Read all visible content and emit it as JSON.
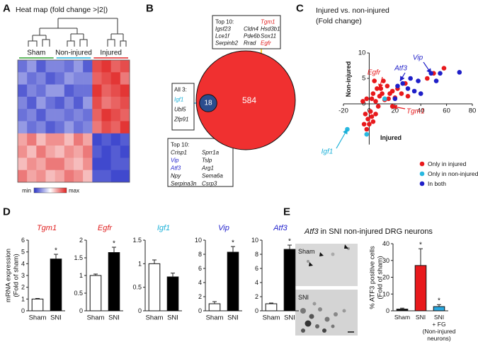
{
  "chart_data": [
    {
      "type": "heatmap",
      "panel": "A",
      "title": "Heat map (fold change >|2|)",
      "groups": [
        {
          "name": "Sham",
          "color": "#2ca02c",
          "columns": 4
        },
        {
          "name": "Non-injured",
          "color": "#1ab0d8",
          "columns": 4
        },
        {
          "name": "Injured",
          "color": "#e02020",
          "columns": 4
        }
      ],
      "colors": [
        "#2b35c8",
        "#ffffff",
        "#e0201f"
      ],
      "colorbar_labels": [
        "min",
        "max"
      ],
      "values": [
        [
          -0.7,
          -0.5,
          -0.8,
          -0.6,
          -0.6,
          -0.7,
          -0.5,
          -0.8,
          0.8,
          0.9,
          0.7,
          0.8
        ],
        [
          -0.5,
          -0.7,
          -0.6,
          -0.8,
          -0.7,
          -0.5,
          -0.6,
          -0.6,
          0.7,
          0.8,
          0.9,
          0.6
        ],
        [
          -0.8,
          -0.6,
          -0.7,
          -0.5,
          -0.5,
          -0.8,
          -0.7,
          -0.7,
          0.9,
          0.7,
          0.8,
          0.9
        ],
        [
          -0.6,
          -0.8,
          -0.5,
          -0.7,
          -0.8,
          -0.6,
          -0.8,
          -0.5,
          0.8,
          0.6,
          0.7,
          0.8
        ],
        [
          -0.7,
          -0.6,
          -0.8,
          -0.6,
          -0.6,
          -0.7,
          -0.6,
          -0.7,
          0.7,
          0.9,
          0.8,
          0.7
        ],
        [
          -0.5,
          -0.7,
          -0.6,
          -0.8,
          -0.7,
          -0.5,
          -0.7,
          -0.6,
          0.6,
          0.8,
          0.7,
          0.9
        ],
        [
          0.4,
          0.6,
          0.3,
          0.5,
          0.5,
          0.3,
          0.6,
          0.4,
          -0.9,
          -0.8,
          -0.9,
          -0.8
        ],
        [
          0.5,
          0.3,
          0.6,
          0.4,
          0.3,
          0.5,
          0.4,
          0.6,
          -0.8,
          -0.9,
          -0.8,
          -0.9
        ],
        [
          0.3,
          0.5,
          0.4,
          0.6,
          0.6,
          0.4,
          0.3,
          0.5,
          -0.9,
          -0.9,
          -0.8,
          -0.8
        ],
        [
          0.6,
          0.4,
          0.5,
          0.3,
          0.4,
          0.6,
          0.5,
          0.3,
          -0.8,
          -0.8,
          -0.9,
          -0.9
        ]
      ]
    },
    {
      "type": "venn",
      "panel": "B",
      "values": [
        584,
        18
      ],
      "colors": [
        "#f03030",
        "#2b4d8e"
      ],
      "boxes": [
        {
          "title": "Top 10:",
          "columns": [
            [
              "Igsf23",
              "Lce1f",
              "Serpinb2"
            ],
            [
              "Cldn4",
              "Pde6b",
              "Rrad"
            ],
            [
              "Tgm1",
              "Hsd3b1",
              "Sox11",
              "Egfr"
            ]
          ]
        },
        {
          "title": "All 3:",
          "columns": [
            [
              "Igf1",
              "Ubl5",
              "Zfp91"
            ]
          ]
        },
        {
          "title": "Top 10:",
          "columns": [
            [
              "Crisp1",
              "Vip",
              "Atf3",
              "Npy",
              "Serpina3n"
            ],
            [
              "Sprr1a",
              "Tslp",
              "Arg1",
              "Sema6a",
              "Csrp3"
            ]
          ]
        }
      ],
      "gene_colors": {
        "Tgm1": "#e02020",
        "Egfr": "#e02020",
        "Igf1": "#1ab0d8",
        "Vip": "#2222cc",
        "Atf3": "#2222cc"
      }
    },
    {
      "type": "scatter",
      "panel": "C",
      "title": "Injured vs. non-injured",
      "subtitle": "(Fold change)",
      "x_label": "Injured",
      "y_label": "Non-injured",
      "xlim": [
        -20,
        80
      ],
      "xticks": [
        -20,
        0,
        20,
        40,
        60,
        80
      ],
      "ylim": [
        -8,
        10
      ],
      "yticks": [
        0,
        5,
        10
      ],
      "series": [
        {
          "name": "Only in injured",
          "color": "#e8191c",
          "x": [
            2,
            3,
            5,
            6,
            8,
            10,
            12,
            14,
            15,
            18,
            20,
            22,
            25,
            28,
            30,
            4,
            7,
            18,
            45,
            50,
            58,
            -2,
            -5,
            -3,
            -1,
            0,
            2,
            -4,
            1,
            3,
            -2,
            5,
            9,
            11,
            16
          ],
          "y": [
            1,
            2,
            0.5,
            3,
            1.5,
            2,
            0.8,
            3.5,
            1,
            2.5,
            1.2,
            3,
            2,
            4,
            1.5,
            4.5,
            -0.5,
            -0.5,
            5,
            6,
            7,
            1,
            0.5,
            -2,
            -3,
            -4,
            -2.5,
            -4,
            -1.5,
            -3.5,
            -5,
            -2,
            3,
            4.5,
            2
          ]
        },
        {
          "name": "Only in non-injured",
          "color": "#29b8e0",
          "x": [
            -17,
            -2,
            12
          ],
          "y": [
            -5,
            -6,
            1
          ]
        },
        {
          "name": "In both",
          "color": "#1f1fc8",
          "x": [
            20,
            22,
            26,
            30,
            35,
            38,
            40,
            52,
            55,
            70,
            48,
            32
          ],
          "y": [
            1,
            3.5,
            4,
            3,
            2.5,
            4.5,
            2,
            4.5,
            6,
            6.2,
            6,
            5
          ]
        }
      ],
      "annotations": [
        {
          "text": "Egfr",
          "color": "#e8191c"
        },
        {
          "text": "Atf3",
          "color": "#1f1fc8"
        },
        {
          "text": "Vip",
          "color": "#1f1fc8"
        },
        {
          "text": "Tgm1",
          "color": "#e8191c"
        },
        {
          "text": "Igf1",
          "color": "#1ab0d8"
        }
      ]
    },
    {
      "type": "bar",
      "panel": "D",
      "y_label": [
        "mRNA expression",
        "(Fold of sham)"
      ],
      "title": "Tgm1",
      "title_color": "#e02020",
      "categories": [
        "Sham",
        "SNI"
      ],
      "values": [
        1,
        4.4
      ],
      "errors": [
        0.05,
        0.4
      ],
      "colors": [
        "#ffffff",
        "#000000"
      ],
      "ylim": [
        0,
        6
      ],
      "yticks": [
        0,
        1,
        2,
        3,
        4,
        5,
        6
      ],
      "significant": [
        false,
        true
      ],
      "significance_label": "*"
    },
    {
      "type": "bar",
      "title": "Egfr",
      "title_color": "#e02020",
      "categories": [
        "Sham",
        "SNI"
      ],
      "values": [
        1,
        1.65
      ],
      "errors": [
        0.04,
        0.15
      ],
      "colors": [
        "#ffffff",
        "#000000"
      ],
      "ylim": [
        0,
        2
      ],
      "yticks": [
        0,
        0.5,
        1,
        1.5,
        2
      ],
      "significant": [
        false,
        true
      ],
      "significance_label": "*"
    },
    {
      "type": "bar",
      "title": "Igf1",
      "title_color": "#1ab0d8",
      "categories": [
        "Sham",
        "SNI"
      ],
      "values": [
        1,
        0.72
      ],
      "errors": [
        0.08,
        0.08
      ],
      "colors": [
        "#ffffff",
        "#000000"
      ],
      "ylim": [
        0,
        1.5
      ],
      "yticks": [
        0,
        0.5,
        1,
        1.5
      ],
      "significant": [
        false,
        false
      ],
      "significance_label": "*"
    },
    {
      "type": "bar",
      "title": "Vip",
      "title_color": "#2222cc",
      "categories": [
        "Sham",
        "SNI"
      ],
      "values": [
        1,
        8.3
      ],
      "errors": [
        0.3,
        0.8
      ],
      "colors": [
        "#ffffff",
        "#000000"
      ],
      "ylim": [
        0,
        10
      ],
      "yticks": [
        0,
        2,
        4,
        6,
        8,
        10
      ],
      "significant": [
        false,
        true
      ],
      "significance_label": "*"
    },
    {
      "type": "bar",
      "title": "Atf3",
      "title_color": "#2222cc",
      "categories": [
        "Sham",
        "SNI"
      ],
      "values": [
        1,
        8.7
      ],
      "errors": [
        0.1,
        0.6
      ],
      "colors": [
        "#ffffff",
        "#000000"
      ],
      "ylim": [
        0,
        10
      ],
      "yticks": [
        0,
        2,
        4,
        6,
        8,
        10
      ],
      "significant": [
        false,
        true
      ],
      "significance_label": "*"
    },
    {
      "type": "bar",
      "panel": "E",
      "title_gene": "Atf3",
      "title": "in SNI non-injured DRG neurons",
      "image_labels": [
        "Sham",
        "SNI"
      ],
      "y_label": [
        "% ATF3 positive cells",
        "(Fold of sham)"
      ],
      "categories": [
        [
          "Sham"
        ],
        [
          "SNI"
        ],
        [
          "SNI",
          "+ FG",
          "(Non-injured",
          "neurons)"
        ]
      ],
      "values": [
        1,
        27,
        2.5
      ],
      "errors": [
        0.6,
        10,
        1.2
      ],
      "colors": [
        "#111111",
        "#e8191c",
        "#29a8e0"
      ],
      "ylim": [
        0,
        40
      ],
      "yticks": [
        0,
        10,
        20,
        30,
        40
      ],
      "significant": [
        false,
        true,
        true
      ],
      "significance_label": "*"
    }
  ]
}
